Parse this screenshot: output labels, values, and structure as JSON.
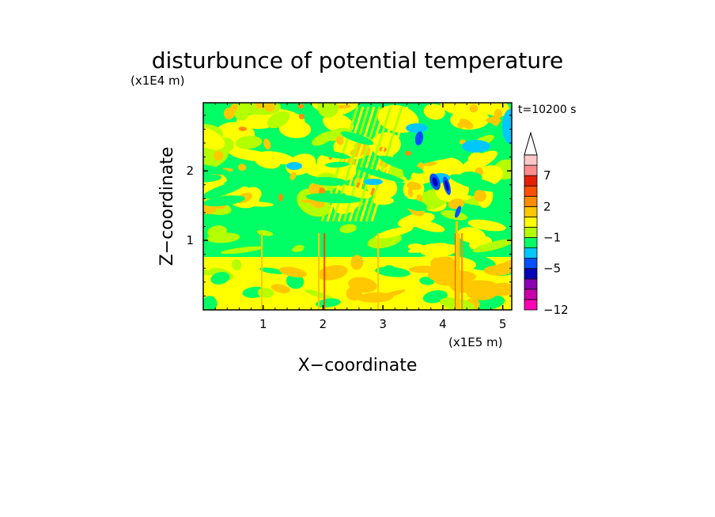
{
  "chart_data": {
    "type": "heatmap",
    "title": "disturbunce of potential temperature",
    "xlabel": "X−coordinate",
    "ylabel": "Z−coordinate",
    "x_unit": "(x1E5 m)",
    "y_unit": "(x1E4 m)",
    "time_label": "t=10200 s",
    "xlim": [
      0,
      5.15
    ],
    "ylim": [
      0,
      2.98
    ],
    "x_ticks": [
      1,
      2,
      3,
      4,
      5
    ],
    "y_ticks": [
      1,
      2
    ],
    "x_tick_labels": [
      "1",
      "2",
      "3",
      "4",
      "5"
    ],
    "y_tick_labels": [
      "1",
      "2"
    ],
    "colorbar": {
      "levels": [
        -12,
        -11,
        -9,
        -7,
        -5,
        -3,
        -2,
        -1,
        0,
        1,
        2,
        3,
        5,
        7,
        9,
        11
      ],
      "colors": [
        "#ff00b4",
        "#c800aa",
        "#8c00b4",
        "#0000b4",
        "#0050ff",
        "#00c8ff",
        "#00ff64",
        "#b4ff00",
        "#ffff00",
        "#ffc800",
        "#ff8c00",
        "#ff5000",
        "#e61e00",
        "#ff8c8c",
        "#ffc8c8"
      ],
      "labels": [
        "−12",
        "−5",
        "−1",
        "2",
        "7"
      ],
      "label_values": [
        -12,
        -5,
        -1,
        2,
        7
      ],
      "extend_top": true
    }
  }
}
